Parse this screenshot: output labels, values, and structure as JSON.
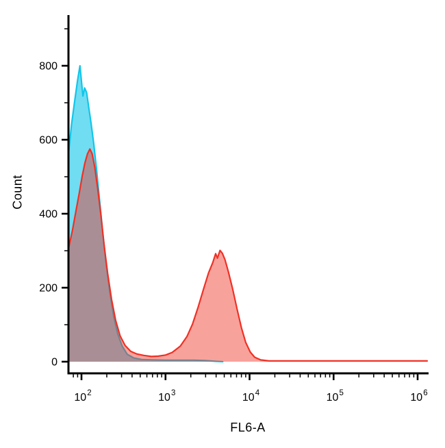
{
  "chart_data": {
    "type": "area",
    "chart_kind": "flow-cytometry-histogram-overlay",
    "title": "",
    "xlabel": "FL6-A",
    "ylabel": "Count",
    "x_scale": "log10",
    "x_range": [
      70,
      1300000
    ],
    "y_range": [
      0,
      950
    ],
    "x_ticks": [
      100,
      1000,
      10000,
      100000,
      1000000
    ],
    "x_tick_labels": [
      "10^2",
      "10^3",
      "10^4",
      "10^5",
      "10^6"
    ],
    "y_ticks": [
      0,
      200,
      400,
      600,
      800
    ],
    "y_minor_step": 100,
    "grid": "off",
    "legend": "none",
    "axis_color": "#000000",
    "series": [
      {
        "name": "cyan-control",
        "color": "#10c6ea",
        "fill_opacity": 0.6,
        "points": [
          [
            70,
            560
          ],
          [
            76,
            640
          ],
          [
            83,
            705
          ],
          [
            90,
            762
          ],
          [
            96,
            800
          ],
          [
            100,
            758
          ],
          [
            104,
            718
          ],
          [
            109,
            740
          ],
          [
            115,
            728
          ],
          [
            122,
            688
          ],
          [
            130,
            645
          ],
          [
            140,
            588
          ],
          [
            152,
            515
          ],
          [
            165,
            432
          ],
          [
            180,
            345
          ],
          [
            197,
            262
          ],
          [
            218,
            185
          ],
          [
            242,
            122
          ],
          [
            270,
            75
          ],
          [
            305,
            42
          ],
          [
            350,
            20
          ],
          [
            420,
            10
          ],
          [
            520,
            6
          ],
          [
            700,
            5
          ],
          [
            1000,
            4
          ],
          [
            1500,
            4
          ],
          [
            2200,
            4
          ],
          [
            3000,
            3
          ],
          [
            4000,
            1
          ],
          [
            4800,
            0
          ]
        ]
      },
      {
        "name": "red-sample",
        "color": "#f03024",
        "fill_opacity": 0.45,
        "points": [
          [
            70,
            305
          ],
          [
            78,
            355
          ],
          [
            86,
            408
          ],
          [
            94,
            455
          ],
          [
            102,
            502
          ],
          [
            110,
            538
          ],
          [
            118,
            562
          ],
          [
            126,
            575
          ],
          [
            134,
            562
          ],
          [
            144,
            525
          ],
          [
            156,
            468
          ],
          [
            170,
            398
          ],
          [
            186,
            315
          ],
          [
            205,
            238
          ],
          [
            228,
            168
          ],
          [
            255,
            112
          ],
          [
            288,
            70
          ],
          [
            330,
            44
          ],
          [
            385,
            28
          ],
          [
            455,
            21
          ],
          [
            550,
            17
          ],
          [
            680,
            14
          ],
          [
            820,
            15
          ],
          [
            1000,
            18
          ],
          [
            1200,
            25
          ],
          [
            1500,
            42
          ],
          [
            1800,
            68
          ],
          [
            2100,
            102
          ],
          [
            2450,
            148
          ],
          [
            2850,
            198
          ],
          [
            3250,
            240
          ],
          [
            3650,
            268
          ],
          [
            3950,
            292
          ],
          [
            4150,
            280
          ],
          [
            4450,
            301
          ],
          [
            4750,
            293
          ],
          [
            5100,
            276
          ],
          [
            5600,
            243
          ],
          [
            6300,
            196
          ],
          [
            7100,
            142
          ],
          [
            8000,
            92
          ],
          [
            9000,
            52
          ],
          [
            10200,
            26
          ],
          [
            11500,
            12
          ],
          [
            13500,
            5
          ],
          [
            17000,
            2
          ],
          [
            30000,
            2
          ],
          [
            80000,
            2
          ],
          [
            200000,
            2
          ],
          [
            600000,
            2
          ],
          [
            1300000,
            2
          ]
        ]
      }
    ]
  }
}
